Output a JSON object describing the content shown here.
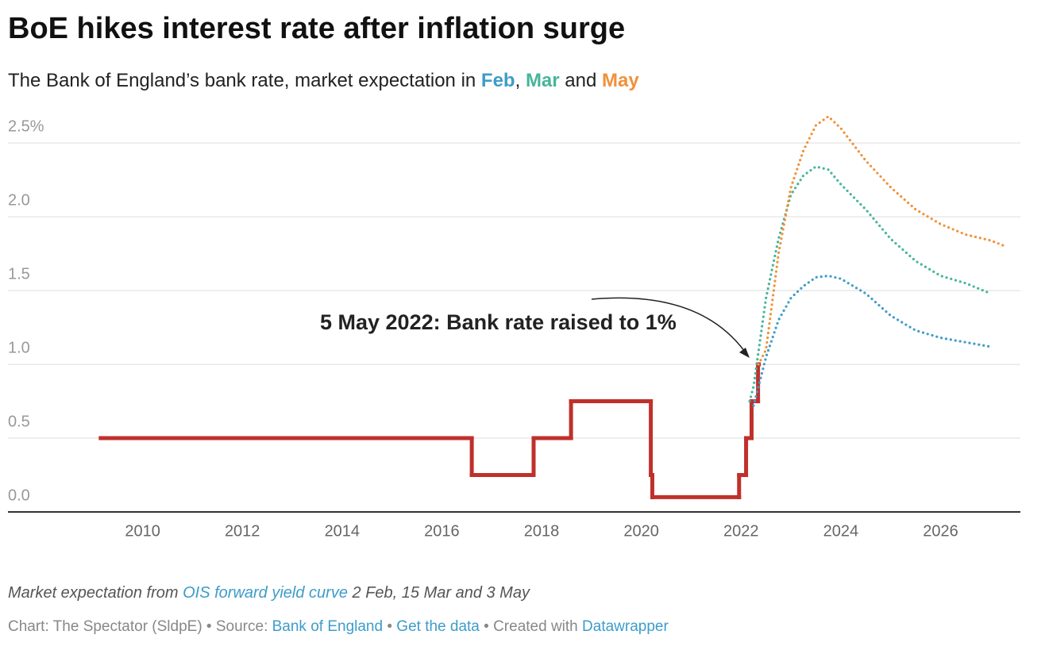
{
  "chart_data": {
    "type": "line",
    "title": "BoE hikes interest rate after inflation surge",
    "subtitle": {
      "before": "The Bank of England’s bank rate, market expectation in ",
      "comma": ", ",
      "and": " and "
    },
    "annotation": "5 May 2022: Bank rate raised to 1%",
    "xlim": [
      2007.3,
      2027.6
    ],
    "ylim": [
      0,
      2.7
    ],
    "xticks": [
      2010,
      2012,
      2014,
      2016,
      2018,
      2020,
      2022,
      2024,
      2026
    ],
    "yticks": [
      {
        "value": 0,
        "label": "0.0"
      },
      0.5,
      {
        "value": 1,
        "label": "1.0"
      },
      1.5,
      {
        "value": 2,
        "label": "2.0"
      },
      {
        "value": 2.5,
        "label": "2.5%"
      }
    ],
    "grid": true,
    "series": [
      {
        "color": "#c0302b",
        "style": "step",
        "x": [
          2009.16,
          2016.6,
          2017.84,
          2018.59,
          2020.19,
          2020.22,
          2021.96,
          2022.1,
          2022.21,
          2022.34
        ],
        "values": [
          0.5,
          0.25,
          0.5,
          0.75,
          0.25,
          0.1,
          0.25,
          0.5,
          0.75,
          1.0
        ]
      },
      {
        "name": "Feb",
        "color": "#3e9cc9",
        "style": "dotted",
        "x": [
          2022.25,
          2022.5,
          2022.75,
          2023,
          2023.25,
          2023.5,
          2023.75,
          2024,
          2024.5,
          2025,
          2025.5,
          2026,
          2026.5,
          2027
        ],
        "values": [
          0.72,
          1.05,
          1.3,
          1.45,
          1.53,
          1.59,
          1.6,
          1.58,
          1.48,
          1.33,
          1.23,
          1.18,
          1.15,
          1.12
        ]
      },
      {
        "name": "Mar",
        "color": "#46b59a",
        "style": "dotted",
        "x": [
          2022.17,
          2022.25,
          2022.5,
          2022.75,
          2023,
          2023.25,
          2023.5,
          2023.75,
          2024,
          2024.5,
          2025,
          2025.5,
          2026,
          2026.5,
          2027
        ],
        "values": [
          0.75,
          0.85,
          1.45,
          1.85,
          2.15,
          2.28,
          2.34,
          2.32,
          2.22,
          2.05,
          1.85,
          1.7,
          1.6,
          1.55,
          1.48
        ]
      },
      {
        "name": "May",
        "color": "#f0913a",
        "style": "dotted",
        "x": [
          2022.35,
          2022.5,
          2022.75,
          2023,
          2023.25,
          2023.5,
          2023.75,
          2024,
          2024.5,
          2025,
          2025.5,
          2026,
          2026.5,
          2027,
          2027.3
        ],
        "values": [
          1.0,
          1.1,
          1.75,
          2.2,
          2.45,
          2.62,
          2.68,
          2.6,
          2.38,
          2.2,
          2.05,
          1.95,
          1.88,
          1.84,
          1.8
        ]
      }
    ],
    "notes": {
      "line1": {
        "before": "Market expectation from ",
        "link": "OIS forward yield curve",
        "after": " 2 Feb, 15 Mar and 3 May"
      },
      "line2": {
        "chart": "Chart: The Spectator (SldpE) • Source: ",
        "source": "Bank of England",
        "sep": " • ",
        "data": "Get the data",
        "created": " • Created with ",
        "tool": "Datawrapper"
      }
    }
  }
}
